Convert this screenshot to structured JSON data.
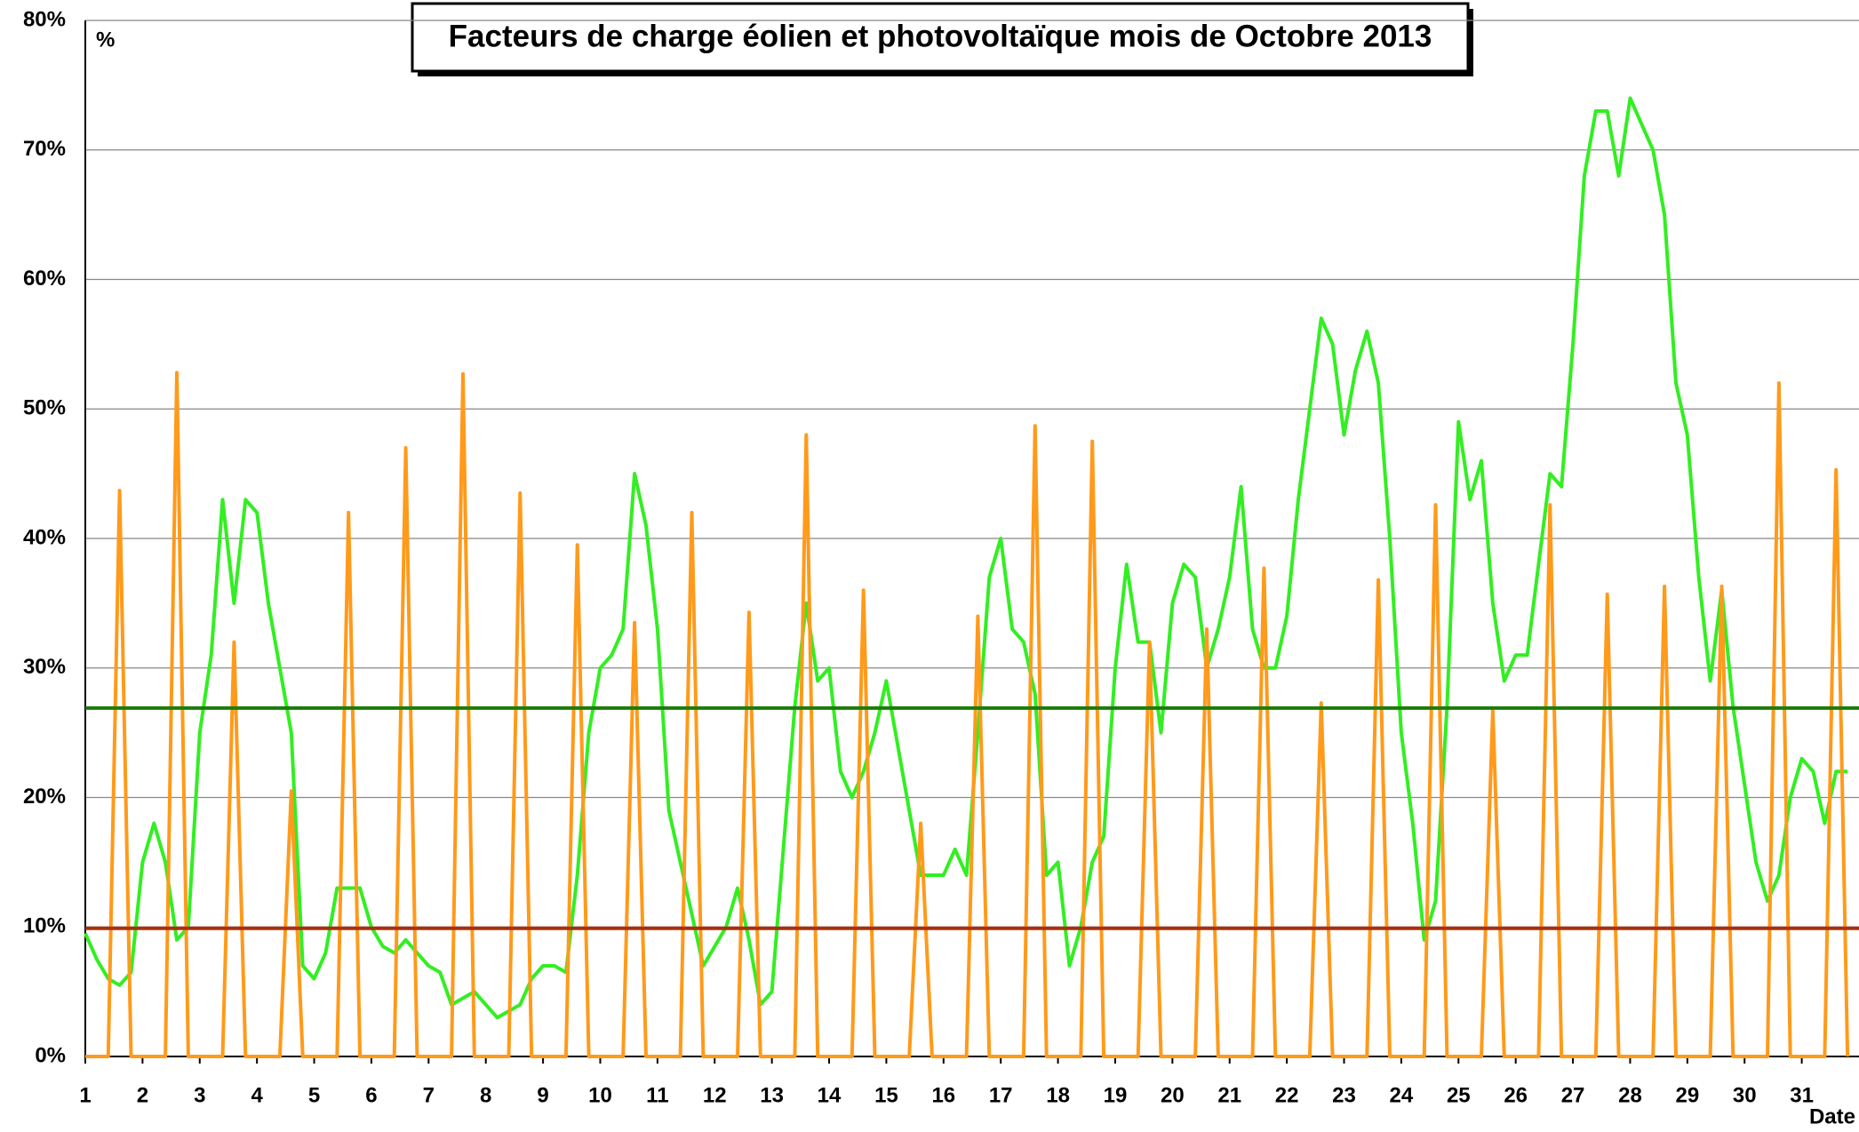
{
  "chart_data": {
    "type": "line",
    "title": "Facteurs de charge éolien et photovoltaïque mois de Octobre 2013",
    "y_label": "%",
    "x_label": "Date",
    "x": [
      1,
      1.2,
      1.4,
      1.6,
      1.8,
      2,
      2.2,
      2.4,
      2.6,
      2.8,
      3,
      3.2,
      3.4,
      3.6,
      3.8,
      4,
      4.2,
      4.4,
      4.6,
      4.8,
      5,
      5.2,
      5.4,
      5.6,
      5.8,
      6,
      6.2,
      6.4,
      6.6,
      6.8,
      7,
      7.2,
      7.4,
      7.6,
      7.8,
      8,
      8.2,
      8.4,
      8.6,
      8.8,
      9,
      9.2,
      9.4,
      9.6,
      9.8,
      10,
      10.2,
      10.4,
      10.6,
      10.8,
      11,
      11.2,
      11.4,
      11.6,
      11.8,
      12,
      12.2,
      12.4,
      12.6,
      12.8,
      13,
      13.2,
      13.4,
      13.6,
      13.8,
      14,
      14.2,
      14.4,
      14.6,
      14.8,
      15,
      15.2,
      15.4,
      15.6,
      15.8,
      16,
      16.2,
      16.4,
      16.6,
      16.8,
      17,
      17.2,
      17.4,
      17.6,
      17.8,
      18,
      18.2,
      18.4,
      18.6,
      18.8,
      19,
      19.2,
      19.4,
      19.6,
      19.8,
      20,
      20.2,
      20.4,
      20.6,
      20.8,
      21,
      21.2,
      21.4,
      21.6,
      21.8,
      22,
      22.2,
      22.4,
      22.6,
      22.8,
      23,
      23.2,
      23.4,
      23.6,
      23.8,
      24,
      24.2,
      24.4,
      24.6,
      24.8,
      25,
      25.2,
      25.4,
      25.6,
      25.8,
      26,
      26.2,
      26.4,
      26.6,
      26.8,
      27,
      27.2,
      27.4,
      27.6,
      27.8,
      28,
      28.2,
      28.4,
      28.6,
      28.8,
      29,
      29.2,
      29.4,
      29.6,
      29.8,
      30,
      30.2,
      30.4,
      30.6,
      30.8,
      31,
      31.2,
      31.4,
      31.6,
      31.8
    ],
    "series": [
      {
        "color": "#33ee22",
        "values": [
          9.5,
          7.5,
          6,
          5.5,
          6.5,
          15,
          18,
          15,
          9,
          10,
          25,
          31,
          43,
          35,
          43,
          42,
          35,
          30,
          25,
          7,
          6,
          8,
          13,
          13,
          13,
          10,
          8.5,
          8,
          9,
          8,
          7,
          6.5,
          4,
          4.5,
          5,
          4,
          3,
          3.5,
          4,
          6,
          7,
          7,
          6.5,
          14,
          25,
          30,
          31,
          33,
          45,
          41,
          33,
          19,
          15,
          11,
          7,
          8.5,
          10,
          13,
          9,
          4,
          5,
          16,
          27,
          35,
          29,
          30,
          22,
          20,
          22,
          25,
          29,
          24,
          19,
          14,
          14,
          14,
          16,
          14,
          25,
          37,
          40,
          33,
          32,
          28,
          14,
          15,
          7,
          10,
          15,
          17,
          30,
          38,
          32,
          32,
          25,
          35,
          38,
          37,
          30,
          33,
          37,
          44,
          33,
          30,
          30,
          34,
          43,
          50,
          57,
          55,
          48,
          53,
          56,
          52,
          40,
          25,
          18,
          9,
          12,
          27,
          49,
          43,
          46,
          35,
          29,
          31,
          31,
          38,
          45,
          44,
          55,
          68,
          73,
          73,
          68,
          74,
          72,
          70,
          65,
          52,
          48,
          37,
          29,
          36,
          27,
          21,
          15,
          12,
          14,
          20,
          23,
          22,
          18,
          22,
          22
        ]
      },
      {
        "color": "#ff9a1a",
        "values": [
          0,
          0,
          0,
          43.7,
          0,
          0,
          0,
          0,
          52.8,
          0,
          0,
          0,
          0,
          32,
          0,
          0,
          0,
          0,
          20.5,
          0,
          0,
          0,
          0,
          42,
          0,
          0,
          0,
          0,
          47,
          0,
          0,
          0,
          0,
          52.7,
          0,
          0,
          0,
          0,
          43.5,
          0,
          0,
          0,
          0,
          39.5,
          0,
          0,
          0,
          0,
          33.5,
          0,
          0,
          0,
          0,
          42,
          0,
          0,
          0,
          0,
          34.3,
          0,
          0,
          0,
          0,
          48,
          0,
          0,
          0,
          0,
          36,
          0,
          0,
          0,
          0,
          18,
          0,
          0,
          0,
          0,
          34,
          0,
          0,
          0,
          0,
          48.7,
          0,
          0,
          0,
          0,
          47.5,
          0,
          0,
          0,
          0,
          32,
          0,
          0,
          0,
          0,
          33,
          0,
          0,
          0,
          0,
          37.7,
          0,
          0,
          0,
          0,
          27.3,
          0,
          0,
          0,
          0,
          36.8,
          0,
          0,
          0,
          0,
          42.6,
          0,
          0,
          0,
          0,
          26.7,
          0,
          0,
          0,
          0,
          42.6,
          0,
          0,
          0,
          0,
          35.7,
          0,
          0,
          0,
          0,
          36.3,
          0,
          0,
          0,
          0,
          36.3,
          0,
          0,
          0,
          0,
          52,
          0,
          0,
          0,
          0,
          45.3,
          0
        ]
      }
    ],
    "hlines": [
      {
        "value": 26.9,
        "color": "#1b7d08"
      },
      {
        "value": 9.9,
        "color": "#a8300a"
      }
    ],
    "xlim": [
      1,
      32
    ],
    "xticks": [
      1,
      2,
      3,
      4,
      5,
      6,
      7,
      8,
      9,
      10,
      11,
      12,
      13,
      14,
      15,
      16,
      17,
      18,
      19,
      20,
      21,
      22,
      23,
      24,
      25,
      26,
      27,
      28,
      29,
      30,
      31
    ],
    "ylim": [
      0,
      80
    ],
    "yticks": [
      {
        "value": 0,
        "label": "0%"
      },
      {
        "value": 10,
        "label": "10%"
      },
      {
        "value": 20,
        "label": "20%"
      },
      {
        "value": 30,
        "label": "30%"
      },
      {
        "value": 40,
        "label": "40%"
      },
      {
        "value": 50,
        "label": "50%"
      },
      {
        "value": 60,
        "label": "60%"
      },
      {
        "value": 70,
        "label": "70%"
      },
      {
        "value": 80,
        "label": "80%"
      }
    ],
    "grid": true
  }
}
